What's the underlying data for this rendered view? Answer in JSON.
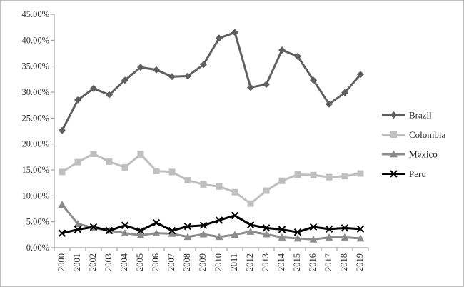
{
  "chart_data": {
    "type": "line",
    "title": "",
    "xlabel": "",
    "ylabel": "",
    "ylim": [
      0,
      45
    ],
    "yticks": [
      "0.00%",
      "5.00%",
      "10.00%",
      "15.00%",
      "20.00%",
      "25.00%",
      "30.00%",
      "35.00%",
      "40.00%",
      "45.00%"
    ],
    "y_tick_values": [
      0,
      5,
      10,
      15,
      20,
      25,
      30,
      35,
      40,
      45
    ],
    "x": [
      "2000",
      "2001",
      "2002",
      "2003",
      "2004",
      "2005",
      "2006",
      "2007",
      "2008",
      "2009",
      "2010",
      "2011",
      "2012",
      "2013",
      "2014",
      "2015",
      "2016",
      "2017",
      "2018",
      "2019"
    ],
    "grid": false,
    "legend_position": "right",
    "series": [
      {
        "name": "Brazil",
        "color": "#5f5f5f",
        "marker": "diamond",
        "values": [
          22.6,
          28.5,
          30.7,
          29.5,
          32.3,
          34.8,
          34.3,
          33.0,
          33.1,
          35.3,
          40.4,
          41.5,
          30.9,
          31.5,
          38.1,
          36.9,
          32.3,
          27.7,
          29.9,
          33.4
        ]
      },
      {
        "name": "Colombia",
        "color": "#bfbfbf",
        "marker": "square",
        "values": [
          14.6,
          16.5,
          18.1,
          16.6,
          15.5,
          18.0,
          14.8,
          14.6,
          13.0,
          12.2,
          11.8,
          10.7,
          8.5,
          11.0,
          12.9,
          14.1,
          14.0,
          13.6,
          13.8,
          14.3
        ]
      },
      {
        "name": "Mexico",
        "color": "#8c8c8c",
        "marker": "triangle",
        "values": [
          8.3,
          4.6,
          3.8,
          3.3,
          2.8,
          2.4,
          2.8,
          2.7,
          2.1,
          2.6,
          2.1,
          2.5,
          3.1,
          2.6,
          2.0,
          1.8,
          1.6,
          2.0,
          2.0,
          1.8
        ]
      },
      {
        "name": "Peru",
        "color": "#000000",
        "marker": "x",
        "values": [
          2.8,
          3.5,
          4.0,
          3.3,
          4.3,
          3.3,
          4.8,
          3.3,
          4.1,
          4.3,
          5.3,
          6.2,
          4.4,
          3.8,
          3.5,
          3.0,
          4.0,
          3.6,
          3.8,
          3.6
        ]
      }
    ]
  }
}
